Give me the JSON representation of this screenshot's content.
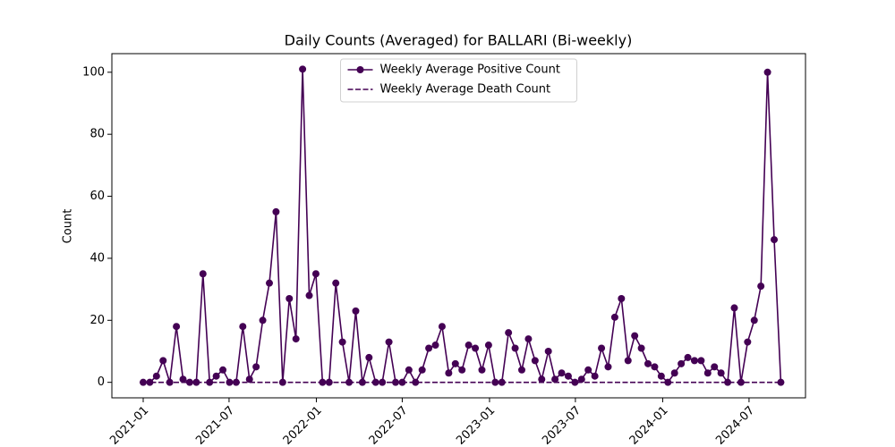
{
  "chart_data": {
    "type": "line",
    "title": "Daily Counts (Averaged) for BALLARI (Bi-weekly)",
    "y_label": "Count",
    "x": [
      "2021-01-01",
      "2021-01-15",
      "2021-01-29",
      "2021-02-12",
      "2021-02-26",
      "2021-03-12",
      "2021-03-26",
      "2021-04-09",
      "2021-04-23",
      "2021-05-07",
      "2021-05-21",
      "2021-06-04",
      "2021-06-18",
      "2021-07-02",
      "2021-07-16",
      "2021-07-30",
      "2021-08-13",
      "2021-08-27",
      "2021-09-10",
      "2021-09-24",
      "2021-10-08",
      "2021-10-22",
      "2021-11-05",
      "2021-11-19",
      "2021-12-03",
      "2021-12-17",
      "2021-12-31",
      "2022-01-14",
      "2022-01-28",
      "2022-02-11",
      "2022-02-25",
      "2022-03-11",
      "2022-03-25",
      "2022-04-08",
      "2022-04-22",
      "2022-05-06",
      "2022-05-20",
      "2022-06-03",
      "2022-06-17",
      "2022-07-01",
      "2022-07-15",
      "2022-07-29",
      "2022-08-12",
      "2022-08-26",
      "2022-09-09",
      "2022-09-23",
      "2022-10-07",
      "2022-10-21",
      "2022-11-04",
      "2022-11-18",
      "2022-12-02",
      "2022-12-16",
      "2022-12-30",
      "2023-01-13",
      "2023-01-27",
      "2023-02-10",
      "2023-02-24",
      "2023-03-10",
      "2023-03-24",
      "2023-04-07",
      "2023-04-21",
      "2023-05-05",
      "2023-05-19",
      "2023-06-02",
      "2023-06-16",
      "2023-06-30",
      "2023-07-14",
      "2023-07-28",
      "2023-08-11",
      "2023-08-25",
      "2023-09-08",
      "2023-09-22",
      "2023-10-06",
      "2023-10-20",
      "2023-11-03",
      "2023-11-17",
      "2023-12-01",
      "2023-12-15",
      "2023-12-29",
      "2024-01-12",
      "2024-01-26",
      "2024-02-09",
      "2024-02-23",
      "2024-03-08",
      "2024-03-22",
      "2024-04-05",
      "2024-04-19",
      "2024-05-03",
      "2024-05-17",
      "2024-05-31",
      "2024-06-14",
      "2024-06-28",
      "2024-07-12",
      "2024-07-26",
      "2024-08-09",
      "2024-08-23",
      "2024-09-06"
    ],
    "series": [
      {
        "name": "Weekly Average Positive Count",
        "color": "#440154",
        "marker": "o",
        "dash": false,
        "values": [
          0,
          0,
          2,
          7,
          0,
          18,
          1,
          0,
          0,
          35,
          0,
          2,
          4,
          0,
          0,
          18,
          1,
          5,
          20,
          32,
          55,
          0,
          27,
          14,
          101,
          28,
          35,
          0,
          0,
          32,
          13,
          0,
          23,
          0,
          8,
          0,
          0,
          13,
          0,
          0,
          4,
          0,
          4,
          11,
          12,
          18,
          3,
          6,
          4,
          12,
          11,
          4,
          12,
          0,
          0,
          16,
          11,
          4,
          14,
          7,
          1,
          10,
          1,
          3,
          2,
          0,
          1,
          4,
          2,
          11,
          5,
          21,
          27,
          7,
          15,
          11,
          6,
          5,
          2,
          0,
          3,
          6,
          8,
          7,
          7,
          3,
          5,
          3,
          0,
          24,
          0,
          13,
          20,
          31,
          100,
          46,
          0
        ]
      },
      {
        "name": "Weekly Average Death Count",
        "color": "#440154",
        "marker": null,
        "dash": true,
        "values": [
          0,
          0,
          0,
          0,
          0,
          0,
          0,
          0,
          0,
          0,
          0,
          0,
          0,
          0,
          0,
          0,
          0,
          0,
          0,
          0,
          0,
          0,
          0,
          0,
          0,
          0,
          0,
          0,
          0,
          0,
          0,
          0,
          0,
          0,
          0,
          0,
          0,
          0,
          0,
          0,
          0,
          0,
          0,
          0,
          0,
          0,
          0,
          0,
          0,
          0,
          0,
          0,
          0,
          0,
          0,
          0,
          0,
          0,
          0,
          0,
          0,
          0,
          0,
          0,
          0,
          0,
          0,
          0,
          0,
          0,
          0,
          0,
          0,
          0,
          0,
          0,
          0,
          0,
          0,
          0,
          0,
          0,
          0,
          0,
          0,
          0,
          0,
          0,
          0,
          0,
          0,
          0,
          0,
          0,
          0,
          0,
          0
        ]
      }
    ],
    "xlim": [
      "2020-10-27",
      "2024-10-28"
    ],
    "xticks": [
      {
        "value": "2021-01-01",
        "label": "2021-01"
      },
      {
        "value": "2021-07-01",
        "label": "2021-07"
      },
      {
        "value": "2022-01-01",
        "label": "2022-01"
      },
      {
        "value": "2022-07-01",
        "label": "2022-07"
      },
      {
        "value": "2023-01-01",
        "label": "2023-01"
      },
      {
        "value": "2023-07-01",
        "label": "2023-07"
      },
      {
        "value": "2024-01-01",
        "label": "2024-01"
      },
      {
        "value": "2024-07-01",
        "label": "2024-07"
      }
    ],
    "ylim": [
      -5,
      106
    ],
    "yticks": [
      0,
      20,
      40,
      60,
      80,
      100
    ],
    "grid": false,
    "legend": "upper center"
  }
}
